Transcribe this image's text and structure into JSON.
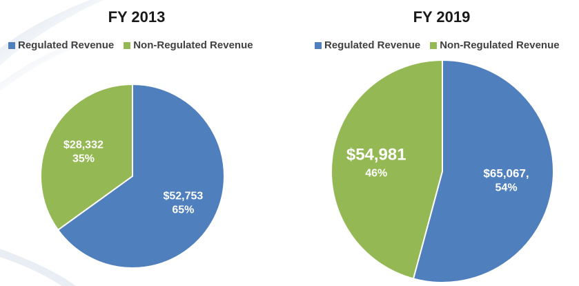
{
  "colors": {
    "regulated": "#4f7fbd",
    "non_regulated": "#94b954"
  },
  "chart_data": [
    {
      "type": "pie",
      "title": "FY 2013",
      "legend": [
        "Regulated Revenue",
        "Non-Regulated Revenue"
      ],
      "legend_position": "top",
      "slices": [
        {
          "label": "Regulated Revenue",
          "value": 52753,
          "percent": "65%",
          "value_text": "$52,753"
        },
        {
          "label": "Non-Regulated Revenue",
          "value": 28332,
          "percent": "35%",
          "value_text": "$28,332"
        }
      ]
    },
    {
      "type": "pie",
      "title": "FY 2019",
      "legend": [
        "Regulated Revenue",
        "Non-Regulated Revenue"
      ],
      "legend_position": "top",
      "slices": [
        {
          "label": "Regulated Revenue",
          "value": 65067,
          "percent": "54%",
          "value_text": "$65,067,"
        },
        {
          "label": "Non-Regulated Revenue",
          "value": 54981,
          "percent": "46%",
          "value_text": "$54,981"
        }
      ]
    }
  ]
}
